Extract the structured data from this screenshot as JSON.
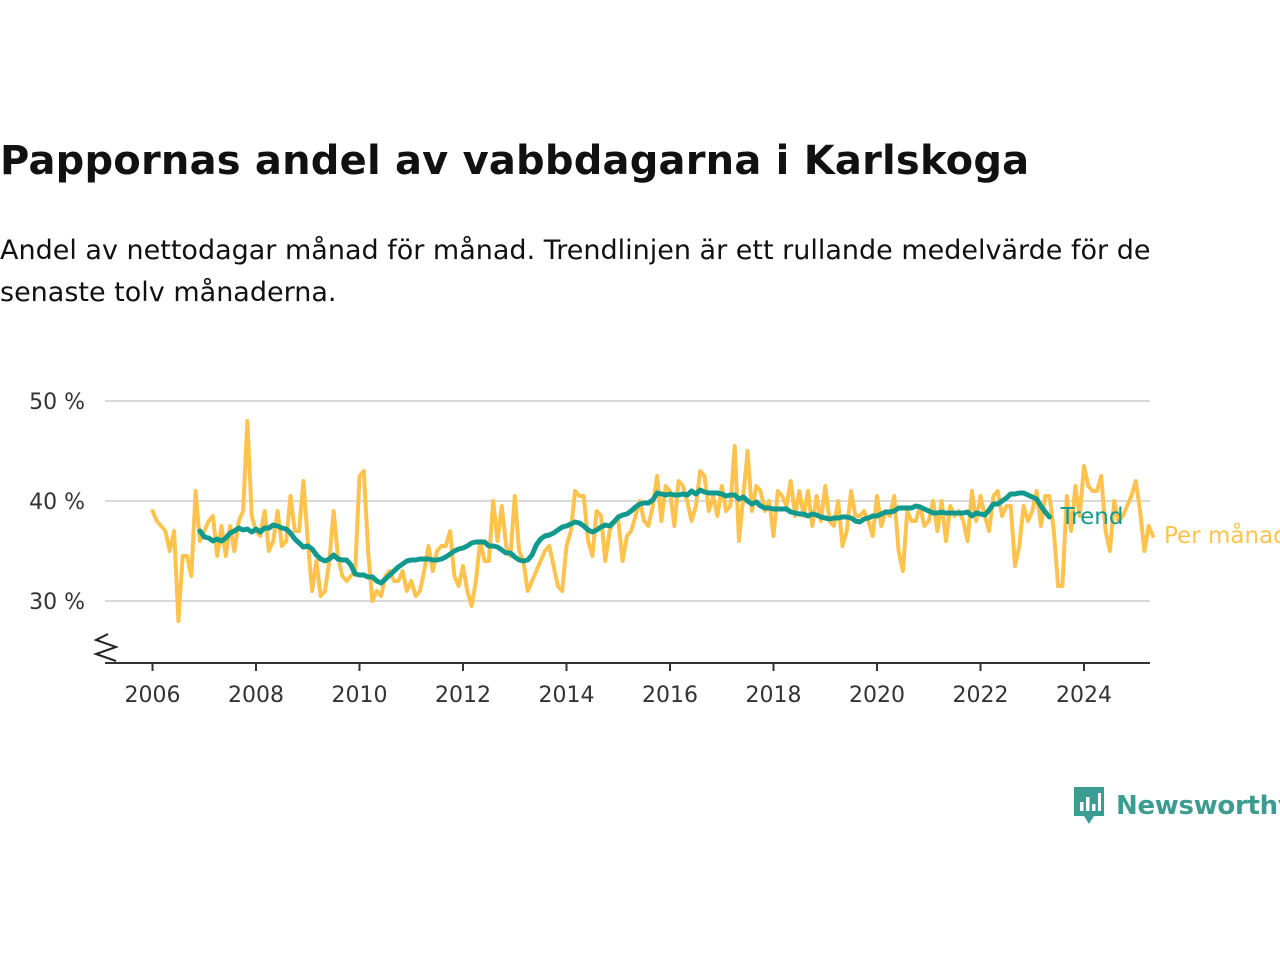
{
  "title": "Pappornas andel av vabbdagarna i Karlskoga",
  "subtitle": "Andel av nettodagar månad för månad. Trendlinjen är ett rullande medelvärde för de senaste tolv månaderna.",
  "brand": {
    "name": "Newsworthy",
    "color": "#3d9c92"
  },
  "chart_data": {
    "type": "line",
    "x_ticks": [
      "2006",
      "2008",
      "2010",
      "2012",
      "2014",
      "2016",
      "2018",
      "2020",
      "2022",
      "2024"
    ],
    "y_ticks": [
      {
        "value": 30,
        "label": "30 %"
      },
      {
        "value": 40,
        "label": "40 %"
      },
      {
        "value": 50,
        "label": "50 %"
      }
    ],
    "ylim": [
      24,
      52
    ],
    "xlim": [
      "2005-06",
      "2025-06"
    ],
    "axis_break": true,
    "grid": "horizontal",
    "legend": "line-end labels",
    "series": [
      {
        "name": "Per månad",
        "color": "#ffc34d",
        "start": "2006-01",
        "step": "month",
        "values": [
          39.0,
          38.0,
          37.5,
          37.0,
          35.0,
          37.0,
          28.0,
          34.5,
          34.5,
          32.5,
          41.0,
          36.0,
          37.0,
          38.0,
          38.5,
          34.5,
          37.5,
          34.5,
          37.5,
          35.0,
          38.0,
          39.0,
          48.0,
          38.5,
          37.0,
          36.5,
          39.0,
          35.0,
          36.0,
          39.0,
          35.5,
          36.0,
          40.5,
          37.0,
          37.0,
          42.0,
          36.0,
          31.0,
          34.0,
          30.5,
          31.0,
          34.0,
          39.0,
          34.5,
          32.5,
          32.0,
          32.5,
          33.0,
          42.5,
          43.0,
          35.0,
          30.0,
          31.0,
          30.5,
          32.5,
          33.0,
          32.0,
          32.0,
          33.0,
          31.0,
          32.0,
          30.5,
          31.0,
          33.0,
          35.5,
          33.0,
          35.0,
          35.5,
          35.5,
          37.0,
          32.5,
          31.5,
          33.5,
          31.0,
          29.5,
          32.0,
          36.0,
          34.0,
          34.0,
          40.0,
          36.0,
          39.5,
          35.5,
          34.5,
          40.5,
          35.0,
          34.0,
          31.0,
          32.0,
          33.0,
          34.0,
          35.0,
          35.5,
          33.5,
          31.5,
          31.0,
          35.5,
          37.0,
          41.0,
          40.5,
          40.5,
          36.0,
          34.5,
          39.0,
          38.5,
          34.0,
          37.0,
          38.0,
          38.0,
          34.0,
          36.5,
          37.0,
          38.5,
          40.0,
          38.0,
          37.5,
          39.5,
          42.5,
          38.0,
          41.5,
          41.0,
          37.5,
          42.0,
          41.5,
          40.0,
          38.0,
          39.5,
          43.0,
          42.5,
          39.0,
          40.5,
          38.5,
          41.5,
          39.0,
          39.5,
          45.5,
          36.0,
          40.5,
          45.0,
          39.0,
          41.5,
          41.0,
          39.0,
          40.0,
          36.5,
          41.0,
          40.5,
          39.5,
          42.0,
          38.5,
          41.0,
          38.5,
          41.0,
          37.5,
          40.5,
          38.0,
          41.5,
          38.0,
          37.5,
          40.0,
          35.5,
          37.0,
          41.0,
          38.5,
          38.5,
          39.0,
          38.0,
          36.5,
          40.5,
          37.5,
          39.0,
          38.5,
          40.5,
          35.0,
          33.0,
          39.0,
          38.0,
          38.0,
          39.5,
          37.5,
          38.0,
          40.0,
          37.0,
          40.0,
          36.0,
          39.5,
          38.5,
          39.0,
          38.0,
          36.0,
          41.0,
          38.0,
          40.5,
          38.5,
          37.0,
          40.5,
          41.0,
          38.5,
          39.5,
          39.5,
          33.5,
          35.5,
          39.5,
          38.0,
          39.0,
          41.0,
          37.5,
          40.5,
          40.5,
          37.0,
          31.5,
          31.5,
          40.5,
          37.0,
          41.5,
          38.5,
          43.5,
          41.5,
          41.0,
          41.0,
          42.5,
          37.0,
          35.0,
          40.0,
          38.0,
          38.5,
          39.5,
          40.5,
          42.0,
          39.0,
          35.0,
          37.5,
          36.5
        ]
      },
      {
        "name": "Trend",
        "color": "#11998e",
        "start": "2006-12",
        "step": "month",
        "values": [
          37.0,
          36.4,
          36.3,
          36.0,
          36.2,
          36.0,
          36.3,
          36.8,
          37.0,
          37.3,
          37.1,
          37.2,
          36.9,
          37.2,
          36.9,
          37.3,
          37.3,
          37.6,
          37.5,
          37.3,
          37.2,
          36.8,
          36.2,
          35.8,
          35.4,
          35.5,
          35.2,
          34.6,
          34.2,
          34.0,
          34.2,
          34.6,
          34.2,
          34.1,
          34.1,
          33.6,
          32.7,
          32.6,
          32.6,
          32.4,
          32.4,
          32.0,
          31.8,
          32.2,
          32.6,
          33.0,
          33.4,
          33.7,
          34.0,
          34.1,
          34.1,
          34.2,
          34.2,
          34.2,
          34.1,
          34.1,
          34.2,
          34.4,
          34.7,
          35.0,
          35.2,
          35.3,
          35.5,
          35.8,
          35.9,
          35.9,
          35.9,
          35.5,
          35.5,
          35.4,
          35.1,
          34.8,
          34.8,
          34.4,
          34.1,
          34.0,
          34.1,
          34.6,
          35.6,
          36.2,
          36.5,
          36.6,
          36.8,
          37.1,
          37.4,
          37.5,
          37.7,
          37.9,
          37.8,
          37.5,
          37.1,
          36.9,
          37.1,
          37.4,
          37.6,
          37.5,
          37.9,
          38.4,
          38.6,
          38.7,
          39.0,
          39.4,
          39.7,
          39.8,
          39.8,
          40.1,
          40.8,
          40.7,
          40.6,
          40.7,
          40.6,
          40.6,
          40.7,
          40.6,
          41.0,
          40.7,
          41.1,
          40.9,
          40.8,
          40.8,
          40.8,
          40.7,
          40.5,
          40.6,
          40.6,
          40.2,
          40.4,
          40.0,
          39.7,
          39.9,
          39.5,
          39.3,
          39.3,
          39.2,
          39.2,
          39.2,
          39.2,
          38.9,
          38.8,
          38.7,
          38.7,
          38.5,
          38.7,
          38.6,
          38.4,
          38.3,
          38.2,
          38.3,
          38.3,
          38.4,
          38.4,
          38.3,
          38.0,
          37.9,
          38.2,
          38.3,
          38.5,
          38.5,
          38.7,
          38.9,
          38.9,
          39.0,
          39.3,
          39.3,
          39.3,
          39.3,
          39.5,
          39.4,
          39.2,
          39.0,
          38.8,
          38.8,
          38.9,
          38.8,
          38.8,
          38.8,
          38.8,
          38.8,
          38.9,
          38.5,
          38.8,
          38.7,
          38.6,
          39.1,
          39.7,
          39.7,
          40.0,
          40.3,
          40.7,
          40.7,
          40.8,
          40.8,
          40.6,
          40.4,
          40.2,
          39.5,
          38.9,
          38.4
        ]
      }
    ]
  }
}
